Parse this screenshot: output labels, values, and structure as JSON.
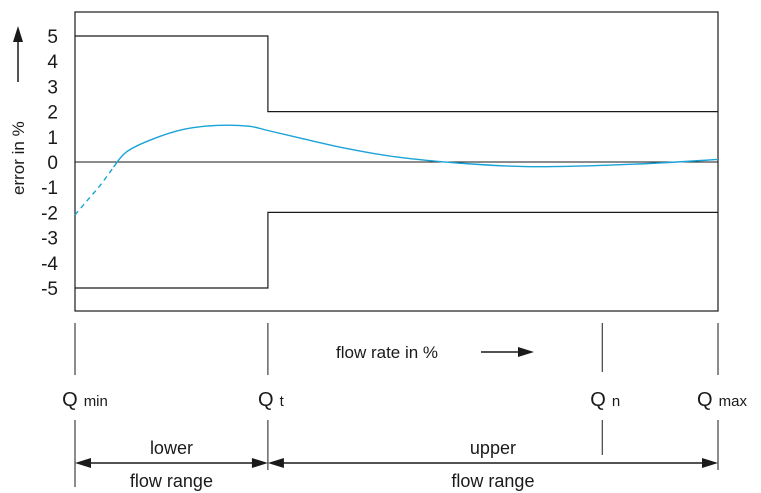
{
  "chart_data": {
    "type": "line",
    "title": "",
    "ylabel": "error in %",
    "xlabel": "flow rate in %",
    "ylim": [
      -6,
      6
    ],
    "y_ticks": [
      "5",
      "4",
      "3",
      "2",
      "1",
      "0",
      "-1",
      "-2",
      "-3",
      "-4",
      "-5"
    ],
    "grid": false,
    "x_markers": [
      {
        "main": "Q",
        "sub": "min",
        "x": 0
      },
      {
        "main": "Q",
        "sub": "t",
        "x": 30
      },
      {
        "main": "Q",
        "sub": "n",
        "x": 82
      },
      {
        "main": "Q",
        "sub": "max",
        "x": 100
      }
    ],
    "error_limits": {
      "lower_flow_range": {
        "x": [
          0,
          30
        ],
        "upper": 5,
        "lower": -5
      },
      "upper_flow_range": {
        "x": [
          30,
          100
        ],
        "upper": 2,
        "lower": -2
      }
    },
    "series": [
      {
        "color": "#1aa3d6",
        "dashed_until_x": 5,
        "x": [
          0,
          2,
          4,
          6,
          8,
          12,
          17,
          22,
          27,
          30,
          35,
          42,
          50,
          60,
          70,
          80,
          90,
          100
        ],
        "y": [
          -2.1,
          -1.5,
          -0.9,
          -0.2,
          0.4,
          0.9,
          1.3,
          1.45,
          1.42,
          1.25,
          0.95,
          0.55,
          0.2,
          -0.05,
          -0.18,
          -0.15,
          -0.05,
          0.1
        ]
      }
    ],
    "ranges": [
      {
        "line1": "lower",
        "line2": "flow range",
        "from": 0,
        "to": 30
      },
      {
        "line1": "upper",
        "line2": "flow range",
        "from": 30,
        "to": 100
      }
    ]
  }
}
